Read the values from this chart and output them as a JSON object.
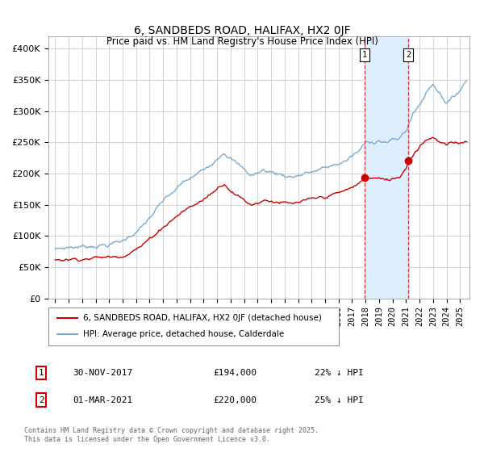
{
  "title": "6, SANDBEDS ROAD, HALIFAX, HX2 0JF",
  "subtitle": "Price paid vs. HM Land Registry's House Price Index (HPI)",
  "legend_label_red": "6, SANDBEDS ROAD, HALIFAX, HX2 0JF (detached house)",
  "legend_label_blue": "HPI: Average price, detached house, Calderdale",
  "annotation1_date": "30-NOV-2017",
  "annotation1_price": "£194,000",
  "annotation1_hpi": "22% ↓ HPI",
  "annotation2_date": "01-MAR-2021",
  "annotation2_price": "£220,000",
  "annotation2_hpi": "25% ↓ HPI",
  "vline1_x": 2017.917,
  "vline2_x": 2021.167,
  "marker1_y_red": 194000,
  "marker1_y_blue": 250000,
  "marker2_y_red": 220000,
  "marker2_y_blue": 295000,
  "ylim": [
    0,
    420000
  ],
  "xlim": [
    1994.5,
    2025.7
  ],
  "yticks": [
    0,
    50000,
    100000,
    150000,
    200000,
    250000,
    300000,
    350000,
    400000
  ],
  "ytick_labels": [
    "£0",
    "£50K",
    "£100K",
    "£150K",
    "£200K",
    "£250K",
    "£300K",
    "£350K",
    "£400K"
  ],
  "xticks": [
    1995,
    1996,
    1997,
    1998,
    1999,
    2000,
    2001,
    2002,
    2003,
    2004,
    2005,
    2006,
    2007,
    2008,
    2009,
    2010,
    2011,
    2012,
    2013,
    2014,
    2015,
    2016,
    2017,
    2018,
    2019,
    2020,
    2021,
    2022,
    2023,
    2024,
    2025
  ],
  "red_color": "#cc0000",
  "blue_color": "#7aaad0",
  "vline_color": "#dd3333",
  "shade_color": "#ddeeff",
  "background_color": "#ffffff",
  "grid_color": "#cccccc",
  "footnote": "Contains HM Land Registry data © Crown copyright and database right 2025.\nThis data is licensed under the Open Government Licence v3.0."
}
